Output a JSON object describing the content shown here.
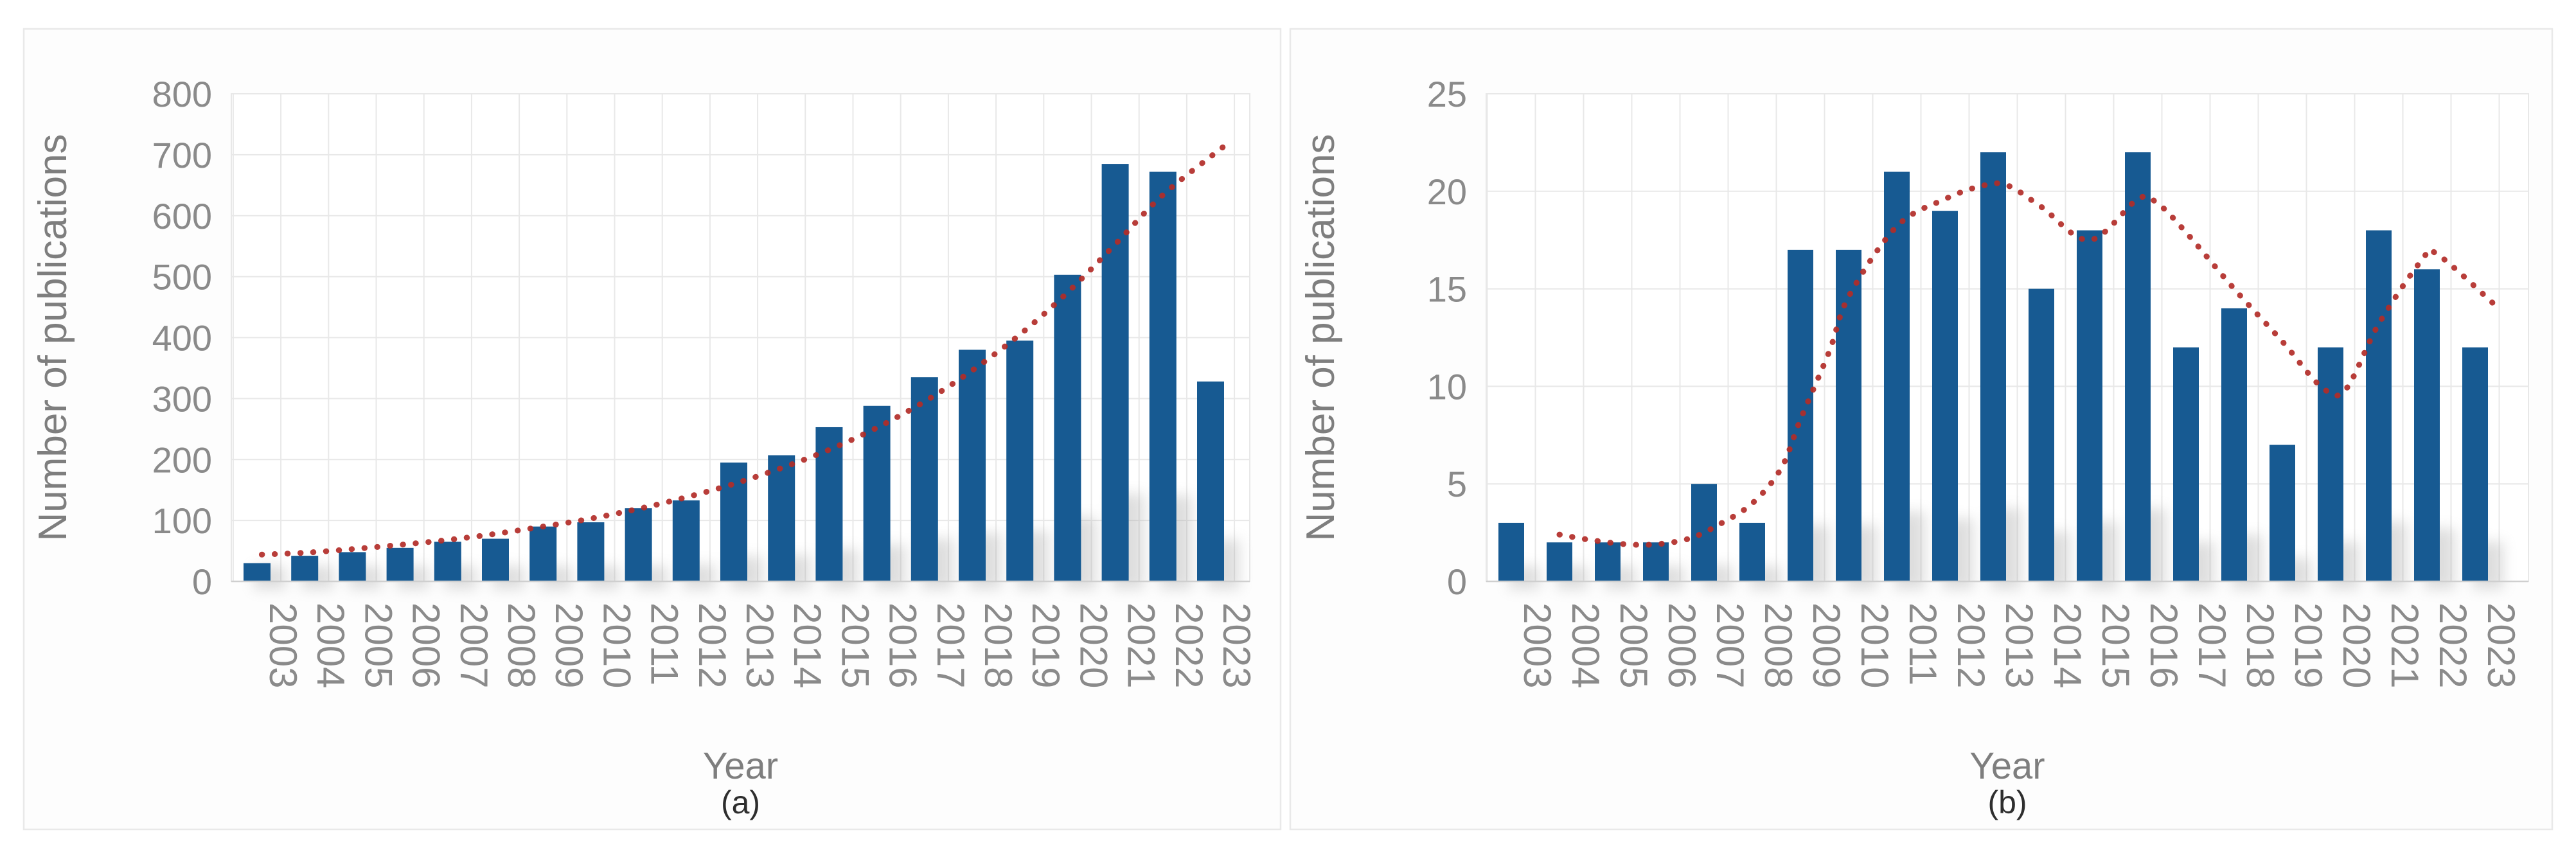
{
  "figure": {
    "kind": "two-panel bar chart figure",
    "background": "#ffffff"
  },
  "colors": {
    "bar": "#175a92",
    "trend": "#b22d28",
    "gridline": "#e8e8e8",
    "axis_line": "#cfcfcf",
    "tick_text": "#8a8a8a",
    "axis_title_text": "#7e7e7e",
    "caption_text": "#2e2e2e",
    "panel_border": "#e9e9e9",
    "panel_fill": "#fdfdfd",
    "plot_fill": "#ffffff",
    "ghost": "#9a9a9a"
  },
  "chart_data": [
    {
      "type": "bar",
      "panel_label": "(a)",
      "xlabel": "Year",
      "ylabel": "Number of publications",
      "categories": [
        "2003",
        "2004",
        "2005",
        "2006",
        "2007",
        "2008",
        "2009",
        "2010",
        "2011",
        "2012",
        "2013",
        "2014",
        "2015",
        "2016",
        "2017",
        "2018",
        "2019",
        "2020",
        "2021",
        "2022",
        "2023"
      ],
      "values": [
        30,
        42,
        48,
        55,
        65,
        70,
        90,
        97,
        120,
        133,
        195,
        207,
        253,
        288,
        335,
        380,
        395,
        503,
        685,
        672,
        328
      ],
      "ylim": [
        0,
        800
      ],
      "yticks": [
        0,
        100,
        200,
        300,
        400,
        500,
        600,
        700,
        800
      ],
      "grid": true,
      "legend": "none",
      "trendline": {
        "style": "dotted",
        "points": [
          [
            2003.1,
            44
          ],
          [
            2004,
            47
          ],
          [
            2005,
            53
          ],
          [
            2006,
            60
          ],
          [
            2007,
            68
          ],
          [
            2008,
            78
          ],
          [
            2009,
            90
          ],
          [
            2010,
            103
          ],
          [
            2011,
            119
          ],
          [
            2012,
            138
          ],
          [
            2013,
            160
          ],
          [
            2014,
            186
          ],
          [
            2015,
            216
          ],
          [
            2016,
            252
          ],
          [
            2017,
            295
          ],
          [
            2018,
            346
          ],
          [
            2019,
            405
          ],
          [
            2020,
            474
          ],
          [
            2021,
            553
          ],
          [
            2022,
            634
          ],
          [
            2023.3,
            715
          ]
        ]
      }
    },
    {
      "type": "bar",
      "panel_label": "(b)",
      "xlabel": "Year",
      "ylabel": "Number of publications",
      "categories": [
        "2003",
        "2004",
        "2005",
        "2006",
        "2007",
        "2008",
        "2009",
        "2010",
        "2011",
        "2012",
        "2013",
        "2014",
        "2015",
        "2016",
        "2017",
        "2018",
        "2019",
        "2020",
        "2021",
        "2022",
        "2023"
      ],
      "values": [
        3,
        2,
        2,
        2,
        5,
        3,
        17,
        17,
        21,
        19,
        22,
        15,
        18,
        22,
        12,
        14,
        7,
        12,
        18,
        16,
        12
      ],
      "ylim": [
        0,
        25
      ],
      "yticks": [
        0,
        5,
        10,
        15,
        20,
        25
      ],
      "grid": true,
      "legend": "none",
      "trendline": {
        "style": "dotted",
        "points": [
          [
            2004,
            2.4
          ],
          [
            2004.7,
            2.1
          ],
          [
            2005.4,
            1.9
          ],
          [
            2006,
            1.9
          ],
          [
            2006.7,
            2.2
          ],
          [
            2007.3,
            2.9
          ],
          [
            2008,
            4.0
          ],
          [
            2008.6,
            5.8
          ],
          [
            2009,
            8.3
          ],
          [
            2009.6,
            11.8
          ],
          [
            2010,
            14.6
          ],
          [
            2011,
            18.2
          ],
          [
            2012,
            19.6
          ],
          [
            2012.8,
            20.3
          ],
          [
            2013.3,
            20.3
          ],
          [
            2014,
            19.2
          ],
          [
            2015,
            17.5
          ],
          [
            2016,
            19.6
          ],
          [
            2016.4,
            19.4
          ],
          [
            2017,
            17.9
          ],
          [
            2018,
            15.0
          ],
          [
            2019,
            12.3
          ],
          [
            2019.8,
            10.0
          ],
          [
            2020.3,
            9.8
          ],
          [
            2021,
            13.2
          ],
          [
            2021.9,
            16.5
          ],
          [
            2022.2,
            16.8
          ],
          [
            2023.4,
            14.2
          ]
        ]
      }
    }
  ]
}
